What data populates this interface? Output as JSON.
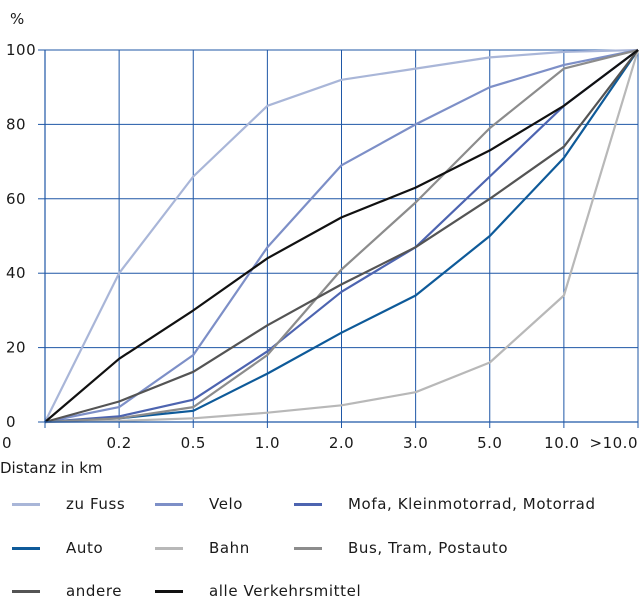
{
  "chart_data": {
    "type": "line",
    "xlabel": "Distanz in km",
    "ylabel": "%",
    "categories": [
      "0",
      "0.2",
      "0.5",
      "1.0",
      "2.0",
      "3.0",
      "5.0",
      "10.0",
      ">10.0"
    ],
    "ylim": [
      0,
      100
    ],
    "yticks": [
      0,
      20,
      40,
      60,
      80,
      100
    ],
    "grid": true,
    "legend_position": "bottom",
    "series": [
      {
        "name": "zu Fuss",
        "color": "#a9b6d8",
        "values": [
          0,
          40,
          66,
          85,
          92,
          95,
          98,
          99.5,
          100
        ]
      },
      {
        "name": "Velo",
        "color": "#7d8fc7",
        "values": [
          0,
          4,
          18,
          47,
          69,
          80,
          90,
          96,
          100
        ]
      },
      {
        "name": "Mofa, Kleinmotorrad, Motorrad",
        "color": "#4d64b0",
        "values": [
          0,
          1.5,
          6,
          19,
          35,
          47,
          66,
          85,
          100
        ]
      },
      {
        "name": "Auto",
        "color": "#0e5a99",
        "values": [
          0,
          1,
          3,
          13,
          24,
          34,
          50,
          71,
          100
        ]
      },
      {
        "name": "Bahn",
        "color": "#b8b8b8",
        "values": [
          0,
          0.3,
          1,
          2.5,
          4.5,
          8,
          16,
          34,
          100
        ]
      },
      {
        "name": "Bus, Tram, Postauto",
        "color": "#8c8c8c",
        "values": [
          0,
          1,
          4,
          18,
          41,
          59,
          79,
          95,
          100
        ]
      },
      {
        "name": "andere",
        "color": "#545454",
        "values": [
          0,
          5.5,
          13.5,
          26,
          37,
          47,
          60,
          74,
          100
        ]
      },
      {
        "name": "alle Verkehrsmittel",
        "color": "#111111",
        "values": [
          0,
          17,
          30,
          44,
          55,
          63,
          73,
          85,
          100
        ]
      }
    ]
  },
  "legend": {
    "items": [
      "zu Fuss",
      "Velo",
      "Mofa, Kleinmotorrad, Motorrad",
      "Auto",
      "Bahn",
      "Bus, Tram, Postauto",
      "andere",
      "alle Verkehrsmittel"
    ]
  }
}
